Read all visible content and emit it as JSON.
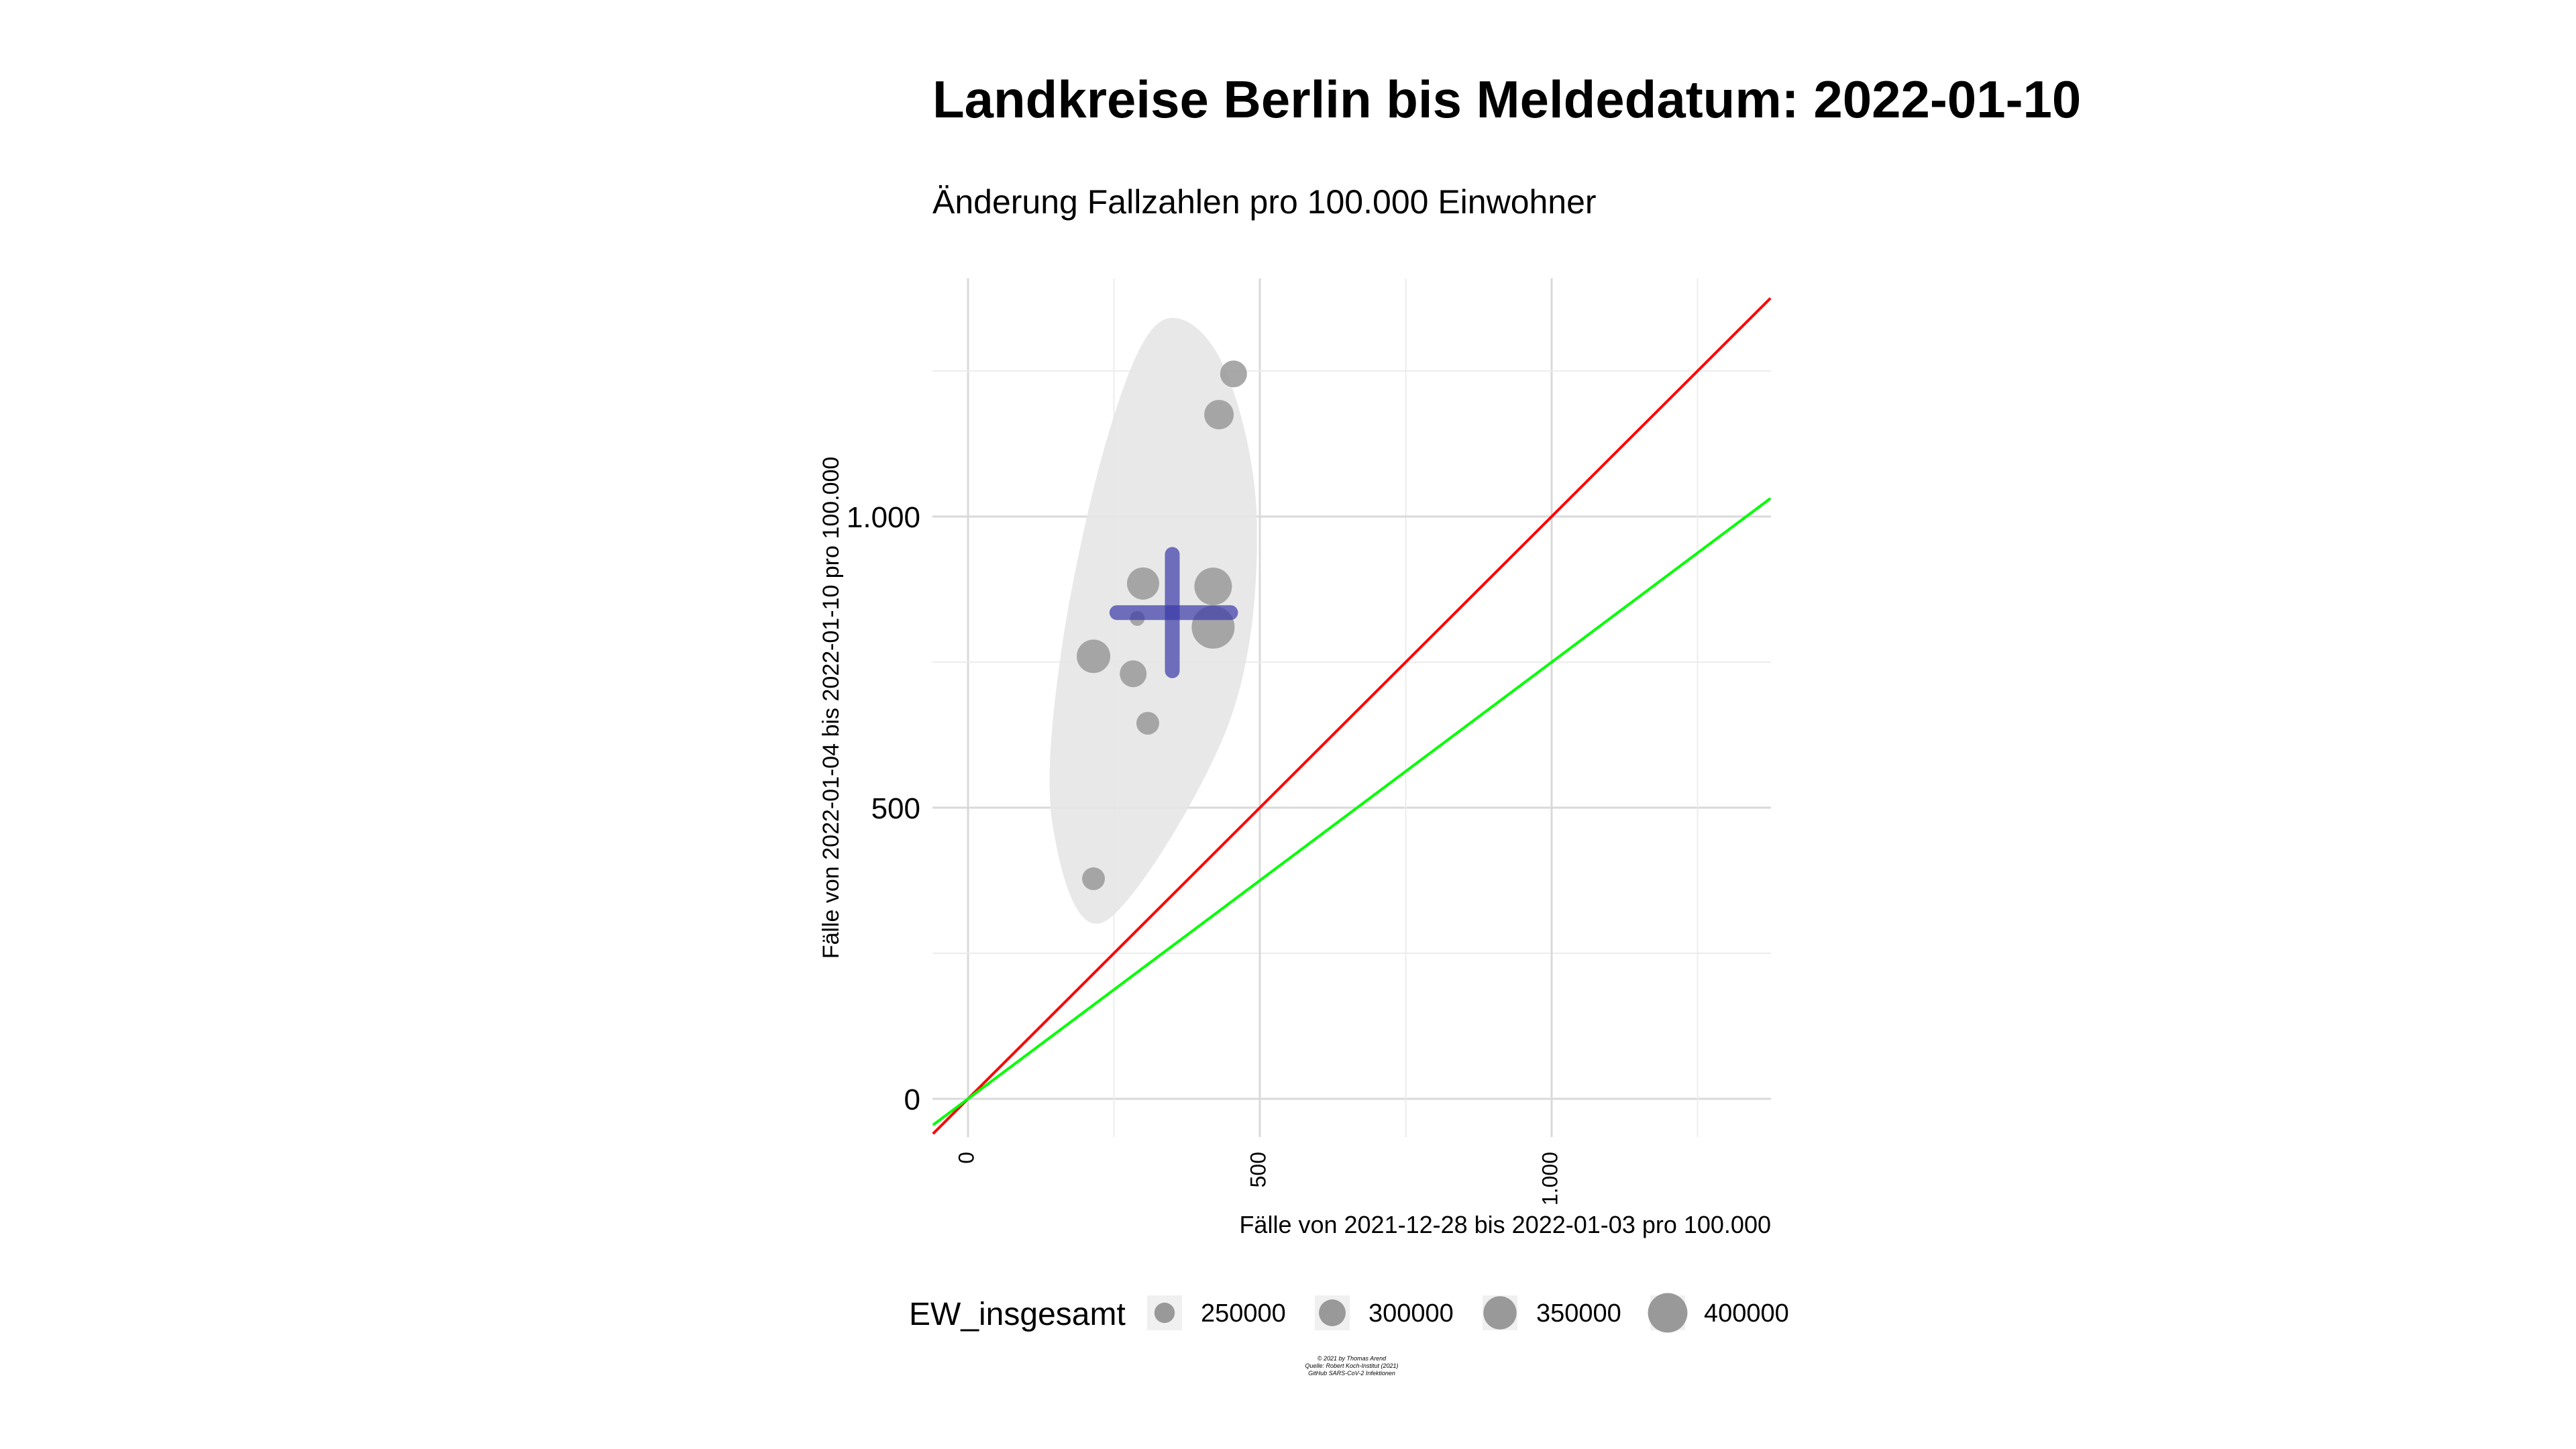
{
  "chart_data": {
    "type": "scatter",
    "title": "Landkreise Berlin bis Meldedatum: 2022-01-10",
    "subtitle": "Änderung Fallzahlen pro 100.000 Einwohner",
    "xlabel": "Fälle von 2021-12-28 bis 2022-01-03 pro 100.000",
    "ylabel": "Fälle von 2022-01-04 bis 2022-01-10 pro 100.000",
    "xlim": [
      -60,
      1375
    ],
    "ylim": [
      -65,
      1410
    ],
    "x_ticks": [
      0,
      500,
      1000
    ],
    "x_tick_labels": [
      "0",
      "500",
      "1.000"
    ],
    "y_ticks": [
      0,
      500,
      1000
    ],
    "y_tick_labels": [
      "0",
      "500",
      "1.000"
    ],
    "grid": true,
    "points": [
      {
        "x": 430,
        "y": 1175,
        "ew": 310000
      },
      {
        "x": 455,
        "y": 1245,
        "ew": 290000
      },
      {
        "x": 300,
        "y": 885,
        "ew": 330000
      },
      {
        "x": 420,
        "y": 880,
        "ew": 370000
      },
      {
        "x": 420,
        "y": 810,
        "ew": 410000
      },
      {
        "x": 290,
        "y": 825,
        "ew": 200000
      },
      {
        "x": 215,
        "y": 760,
        "ew": 340000
      },
      {
        "x": 283,
        "y": 730,
        "ew": 290000
      },
      {
        "x": 308,
        "y": 645,
        "ew": 260000
      },
      {
        "x": 215,
        "y": 378,
        "ew": 260000
      }
    ],
    "mean_cross": {
      "x": 350,
      "y": 835,
      "x_range": [
        255,
        450
      ],
      "y_range": [
        735,
        935
      ],
      "color": "#3a3aa8"
    },
    "ellipse": {
      "center_x": 335,
      "center_y": 820,
      "color": "#e6e6e6",
      "points": [
        [
          330,
          1335
        ],
        [
          435,
          1265
        ],
        [
          495,
          990
        ],
        [
          445,
          640
        ],
        [
          235,
          305
        ],
        [
          145,
          470
        ],
        [
          160,
          770
        ],
        [
          240,
          1140
        ]
      ]
    },
    "reference_lines": [
      {
        "slope": 1.0,
        "color": "#ff0000"
      },
      {
        "slope": 0.75,
        "color": "#00ff00"
      }
    ],
    "point_color": "#999999",
    "legend": {
      "title": "EW_insgesamt",
      "placement": "bottom",
      "entries": [
        {
          "label": "250000",
          "value": 250000
        },
        {
          "label": "300000",
          "value": 300000
        },
        {
          "label": "350000",
          "value": 350000
        },
        {
          "label": "400000",
          "value": 400000
        }
      ]
    },
    "caption": [
      "© 2021 by Thomas Arend",
      "Quelle: Robert Koch-Institut (2021)",
      "GitHub SARS-CoV-2 Infektionen"
    ]
  }
}
